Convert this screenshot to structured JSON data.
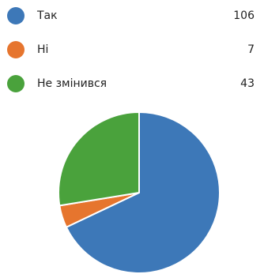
{
  "chart_data": {
    "type": "pie",
    "categories": [
      "Так",
      "Ні",
      "Не змінився"
    ],
    "values": [
      106,
      7,
      43
    ],
    "colors": [
      "#3d78b8",
      "#e6752e",
      "#4aa23c"
    ],
    "legend_placement": "top"
  }
}
